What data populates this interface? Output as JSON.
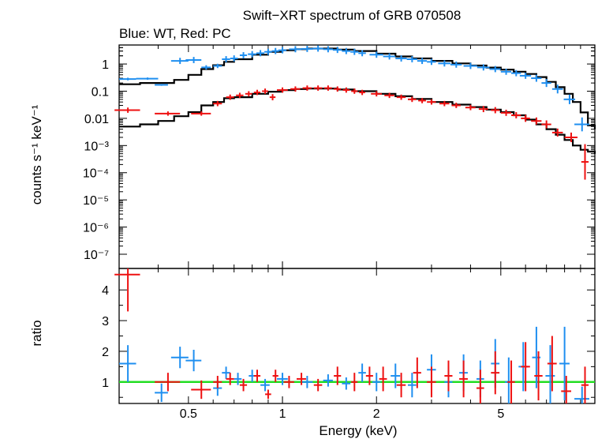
{
  "header": {
    "title": "Swift−XRT spectrum of GRB 070508",
    "subtitle": "Blue: WT, Red: PC"
  },
  "colors": {
    "wt": "#1f8ff0",
    "pc": "#ee1111",
    "model": "#000000",
    "unity_line": "#22dd22"
  },
  "chart_data": [
    {
      "type": "scatter",
      "panel": "spectrum",
      "ylabel": "counts s⁻¹ keV⁻¹",
      "xscale": "log",
      "yscale": "log",
      "xlim": [
        0.3,
        10
      ],
      "ylim": [
        3e-08,
        5
      ],
      "ytick_labels": [
        "1",
        "0.1",
        "0.01",
        "10⁻³",
        "10⁻⁴",
        "10⁻⁵",
        "10⁻⁶",
        "10⁻⁷"
      ],
      "series": [
        {
          "name": "WT",
          "color": "#1f8ff0",
          "x": [
            0.32,
            0.37,
            0.41,
            0.47,
            0.52,
            0.57,
            0.62,
            0.66,
            0.7,
            0.75,
            0.8,
            0.85,
            0.9,
            0.95,
            1.0,
            1.1,
            1.2,
            1.3,
            1.4,
            1.5,
            1.6,
            1.7,
            1.8,
            2.0,
            2.2,
            2.4,
            2.6,
            2.8,
            3.0,
            3.3,
            3.6,
            4.0,
            4.4,
            4.8,
            5.2,
            5.6,
            6.0,
            6.5,
            7.0,
            7.6,
            8.3,
            9.1
          ],
          "xerr": [
            0.02,
            0.03,
            0.02,
            0.03,
            0.03,
            0.02,
            0.02,
            0.02,
            0.02,
            0.02,
            0.025,
            0.025,
            0.025,
            0.025,
            0.03,
            0.05,
            0.05,
            0.05,
            0.05,
            0.05,
            0.05,
            0.05,
            0.05,
            0.1,
            0.1,
            0.1,
            0.1,
            0.1,
            0.1,
            0.15,
            0.15,
            0.2,
            0.2,
            0.2,
            0.2,
            0.2,
            0.25,
            0.25,
            0.25,
            0.3,
            0.35,
            0.5
          ],
          "y": [
            0.28,
            0.29,
            0.17,
            1.3,
            1.4,
            0.75,
            0.85,
            1.5,
            1.6,
            2.1,
            2.3,
            2.5,
            2.8,
            3.0,
            3.2,
            3.5,
            3.6,
            3.7,
            3.5,
            3.3,
            3.0,
            2.8,
            2.5,
            2.2,
            1.9,
            1.6,
            1.5,
            1.3,
            1.2,
            1.05,
            0.95,
            0.85,
            0.75,
            0.65,
            0.52,
            0.46,
            0.37,
            0.3,
            0.2,
            0.12,
            0.05,
            0.006
          ],
          "yerr": [
            0.12,
            0.1,
            0.08,
            0.3,
            0.3,
            0.2,
            0.2,
            0.3,
            0.3,
            0.3,
            0.3,
            0.3,
            0.3,
            0.3,
            0.3,
            0.3,
            0.3,
            0.3,
            0.3,
            0.3,
            0.3,
            0.3,
            0.3,
            0.3,
            0.3,
            0.3,
            0.3,
            0.3,
            0.3,
            0.3,
            0.3,
            0.3,
            0.3,
            0.3,
            0.3,
            0.3,
            0.3,
            0.35,
            0.4,
            0.45,
            0.5,
            0.8
          ]
        },
        {
          "name": "PC",
          "color": "#ee1111",
          "x": [
            0.32,
            0.43,
            0.55,
            0.62,
            0.68,
            0.73,
            0.78,
            0.83,
            0.88,
            0.93,
            1.0,
            1.1,
            1.2,
            1.3,
            1.4,
            1.5,
            1.6,
            1.7,
            1.8,
            2.0,
            2.2,
            2.4,
            2.6,
            2.8,
            3.0,
            3.3,
            3.6,
            4.0,
            4.4,
            4.8,
            5.2,
            5.6,
            6.0,
            6.5,
            7.0,
            7.6,
            8.4,
            9.3
          ],
          "xerr": [
            0.03,
            0.04,
            0.04,
            0.02,
            0.02,
            0.02,
            0.02,
            0.02,
            0.02,
            0.02,
            0.04,
            0.04,
            0.04,
            0.04,
            0.04,
            0.04,
            0.04,
            0.04,
            0.04,
            0.08,
            0.08,
            0.08,
            0.08,
            0.08,
            0.1,
            0.12,
            0.12,
            0.15,
            0.15,
            0.15,
            0.2,
            0.2,
            0.2,
            0.25,
            0.25,
            0.3,
            0.4,
            0.25
          ],
          "y": [
            0.02,
            0.015,
            0.015,
            0.035,
            0.06,
            0.07,
            0.08,
            0.09,
            0.1,
            0.06,
            0.11,
            0.12,
            0.13,
            0.13,
            0.13,
            0.12,
            0.11,
            0.1,
            0.09,
            0.08,
            0.07,
            0.06,
            0.05,
            0.045,
            0.04,
            0.035,
            0.03,
            0.025,
            0.022,
            0.02,
            0.016,
            0.013,
            0.01,
            0.008,
            0.006,
            0.003,
            0.002,
            0.00025
          ],
          "yerr": [
            0.25,
            0.2,
            0.2,
            0.25,
            0.25,
            0.25,
            0.25,
            0.25,
            0.25,
            0.3,
            0.25,
            0.25,
            0.25,
            0.25,
            0.25,
            0.25,
            0.25,
            0.25,
            0.25,
            0.25,
            0.25,
            0.25,
            0.25,
            0.25,
            0.25,
            0.25,
            0.25,
            0.25,
            0.3,
            0.3,
            0.3,
            0.3,
            0.35,
            0.35,
            0.4,
            0.4,
            0.5,
            3.5
          ]
        }
      ],
      "models": [
        {
          "name": "WT model",
          "x": [
            0.3,
            0.35,
            0.4,
            0.45,
            0.5,
            0.55,
            0.6,
            0.65,
            0.7,
            0.8,
            0.9,
            1.0,
            1.1,
            1.2,
            1.3,
            1.5,
            1.7,
            2.0,
            2.3,
            2.6,
            3.0,
            3.5,
            4.0,
            4.5,
            5.0,
            5.5,
            6.0,
            6.5,
            7.0,
            7.5,
            8.0,
            8.5,
            9.0,
            9.5,
            10.0
          ],
          "y": [
            0.18,
            0.2,
            0.2,
            0.26,
            0.4,
            0.65,
            0.9,
            1.2,
            1.5,
            2.2,
            2.8,
            3.2,
            3.5,
            3.7,
            3.7,
            3.4,
            3.0,
            2.4,
            1.9,
            1.6,
            1.3,
            1.05,
            0.88,
            0.74,
            0.62,
            0.52,
            0.43,
            0.33,
            0.22,
            0.14,
            0.08,
            0.04,
            0.0165,
            0.0055,
            0.004
          ]
        },
        {
          "name": "PC model",
          "x": [
            0.3,
            0.35,
            0.4,
            0.45,
            0.5,
            0.55,
            0.6,
            0.65,
            0.7,
            0.8,
            0.9,
            1.0,
            1.1,
            1.2,
            1.3,
            1.5,
            1.7,
            2.0,
            2.3,
            2.6,
            3.0,
            3.5,
            4.0,
            4.5,
            5.0,
            5.5,
            6.0,
            6.5,
            7.0,
            7.5,
            8.0,
            8.5,
            9.0,
            9.5,
            10.0
          ],
          "y": [
            0.005,
            0.006,
            0.008,
            0.012,
            0.017,
            0.03,
            0.04,
            0.055,
            0.06,
            0.08,
            0.095,
            0.11,
            0.12,
            0.125,
            0.125,
            0.115,
            0.1,
            0.08,
            0.065,
            0.052,
            0.04,
            0.032,
            0.026,
            0.021,
            0.017,
            0.013,
            0.009,
            0.006,
            0.004,
            0.0025,
            0.0016,
            0.001,
            0.0007,
            0.0006,
            0.0005
          ]
        }
      ]
    },
    {
      "type": "scatter",
      "panel": "ratio",
      "xlabel": "Energy (keV)",
      "ylabel": "ratio",
      "xscale": "log",
      "xlim": [
        0.3,
        10
      ],
      "ylim": [
        0.3,
        4.7
      ],
      "xtick_labels": [
        "0.5",
        "1",
        "2",
        "5"
      ],
      "xtick_values": [
        0.5,
        1,
        2,
        5
      ],
      "ytick_labels": [
        "1",
        "2",
        "3",
        "4"
      ],
      "reference_line": 1,
      "series": [
        {
          "name": "WT",
          "color": "#1f8ff0",
          "x": [
            0.32,
            0.41,
            0.47,
            0.52,
            0.62,
            0.66,
            0.72,
            0.8,
            0.88,
            1.0,
            1.2,
            1.4,
            1.6,
            1.8,
            2.0,
            2.3,
            2.6,
            3.0,
            3.4,
            3.8,
            4.3,
            4.8,
            5.3,
            5.9,
            6.5,
            7.2,
            8.0,
            9.1
          ],
          "xerr": [
            0.02,
            0.02,
            0.03,
            0.03,
            0.02,
            0.02,
            0.02,
            0.02,
            0.03,
            0.04,
            0.05,
            0.05,
            0.05,
            0.05,
            0.06,
            0.08,
            0.08,
            0.1,
            0.1,
            0.12,
            0.12,
            0.15,
            0.15,
            0.2,
            0.2,
            0.25,
            0.3,
            0.5
          ],
          "y": [
            1.6,
            0.65,
            1.8,
            1.7,
            0.8,
            1.3,
            1.1,
            1.2,
            0.9,
            1.1,
            1.0,
            1.05,
            0.95,
            1.3,
            1.0,
            1.2,
            0.9,
            1.4,
            1.0,
            1.3,
            1.1,
            1.6,
            1.0,
            1.5,
            1.8,
            1.2,
            1.6,
            0.45
          ],
          "yerr": [
            0.6,
            0.3,
            0.35,
            0.35,
            0.25,
            0.2,
            0.2,
            0.2,
            0.2,
            0.2,
            0.2,
            0.2,
            0.2,
            0.3,
            0.3,
            0.4,
            0.4,
            0.5,
            0.5,
            0.6,
            0.6,
            0.8,
            0.8,
            0.8,
            1.0,
            1.0,
            1.2,
            0.4
          ]
        },
        {
          "name": "PC",
          "color": "#ee1111",
          "x": [
            0.32,
            0.43,
            0.55,
            0.62,
            0.68,
            0.75,
            0.83,
            0.9,
            0.95,
            1.05,
            1.15,
            1.3,
            1.5,
            1.7,
            1.9,
            2.1,
            2.4,
            2.7,
            3.0,
            3.4,
            3.8,
            4.3,
            4.8,
            5.4,
            6.0,
            6.6,
            7.3,
            8.1,
            9.3
          ],
          "xerr": [
            0.03,
            0.04,
            0.04,
            0.02,
            0.02,
            0.02,
            0.02,
            0.02,
            0.02,
            0.04,
            0.04,
            0.04,
            0.04,
            0.04,
            0.05,
            0.06,
            0.08,
            0.08,
            0.1,
            0.1,
            0.12,
            0.12,
            0.15,
            0.15,
            0.2,
            0.2,
            0.25,
            0.3,
            0.25
          ],
          "y": [
            4.5,
            1.0,
            0.75,
            1.0,
            1.1,
            0.9,
            1.2,
            0.6,
            1.2,
            1.0,
            1.1,
            0.9,
            1.2,
            1.0,
            1.2,
            1.1,
            0.9,
            1.3,
            1.0,
            1.2,
            1.1,
            0.8,
            1.3,
            1.0,
            1.5,
            1.2,
            1.6,
            0.7,
            0.9
          ],
          "yerr": [
            1.2,
            0.3,
            0.3,
            0.2,
            0.2,
            0.2,
            0.2,
            0.15,
            0.2,
            0.2,
            0.2,
            0.2,
            0.3,
            0.3,
            0.3,
            0.4,
            0.4,
            0.5,
            0.5,
            0.5,
            0.6,
            0.6,
            0.7,
            0.7,
            0.8,
            0.8,
            0.9,
            0.5,
            0.6
          ]
        }
      ]
    }
  ]
}
